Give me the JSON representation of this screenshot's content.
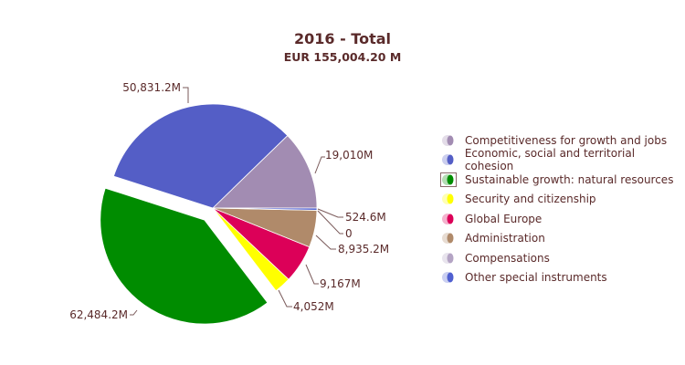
{
  "chart_data": {
    "type": "pie",
    "title": "2016 - Total",
    "subtitle": "EUR 155,004.20 M",
    "legend_position": "right",
    "exploded": "Sustainable growth: natural resources",
    "slices": [
      {
        "name": "Competitiveness for growth and jobs",
        "value": 19010,
        "label": "19,010M",
        "color": "#a28cb2"
      },
      {
        "name": "Economic, social and territorial cohesion",
        "value": 50831.2,
        "label": "50,831.2M",
        "color": "#545ec6"
      },
      {
        "name": "Sustainable growth: natural resources",
        "value": 62484.2,
        "label": "62,484.2M",
        "color": "#008c00"
      },
      {
        "name": "Security and citizenship",
        "value": 4052,
        "label": "4,052M",
        "color": "#ffff00"
      },
      {
        "name": "Global Europe",
        "value": 9167,
        "label": "9,167M",
        "color": "#dc0058"
      },
      {
        "name": "Administration",
        "value": 8935.2,
        "label": "8,935.2M",
        "color": "#b08a6a"
      },
      {
        "name": "Compensations",
        "value": 0,
        "label": "0",
        "color": "#b4a4c4"
      },
      {
        "name": "Other special instruments",
        "value": 524.6,
        "label": "524.6M",
        "color": "#5060d0"
      }
    ]
  }
}
